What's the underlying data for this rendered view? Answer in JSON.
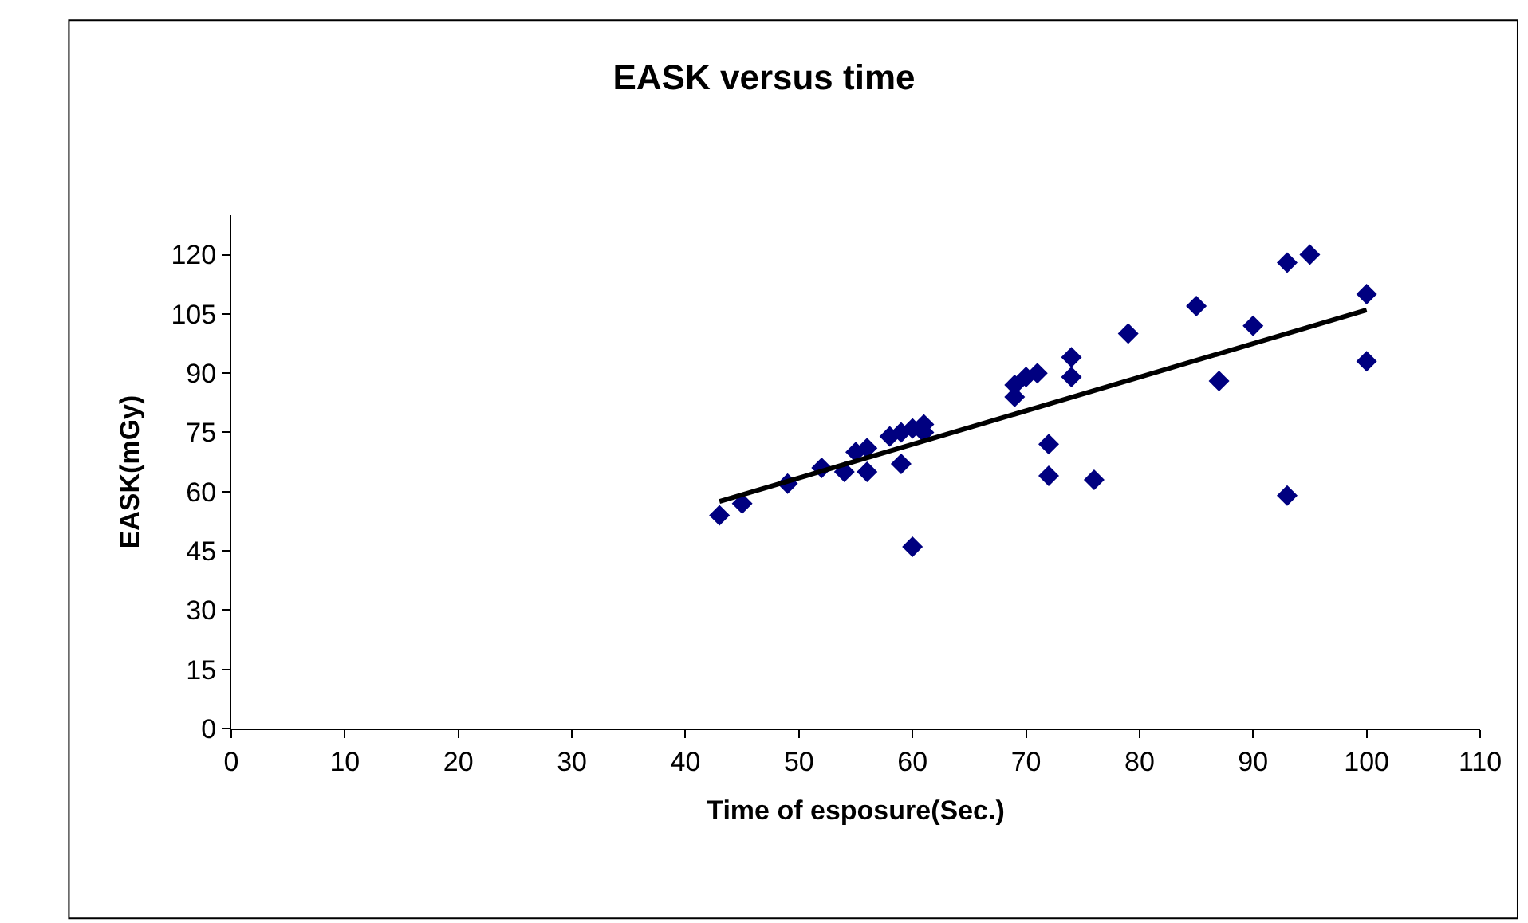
{
  "chart_data": {
    "type": "scatter",
    "title": "EASK versus time",
    "xlabel": "Time of esposure(Sec.)",
    "ylabel": "EASK(mGy)",
    "series": [
      {
        "color": "#000080",
        "marker": "diamond",
        "x": [
          43,
          45,
          49,
          52,
          54,
          55,
          56,
          56,
          58,
          59,
          59,
          60,
          60,
          61,
          61,
          69,
          69,
          70,
          71,
          72,
          72,
          74,
          74,
          76,
          79,
          85,
          87,
          90,
          93,
          93,
          95,
          100,
          100
        ],
        "values": [
          54,
          57,
          62,
          66,
          65,
          70,
          65,
          71,
          74,
          67,
          75,
          46,
          76,
          75,
          77,
          84,
          87,
          89,
          90,
          72,
          64,
          89,
          94,
          63,
          100,
          107,
          88,
          102,
          118,
          59,
          120,
          110,
          93
        ]
      },
      {
        "type": "line",
        "color": "#000000",
        "marker": "none",
        "line_style": "solid",
        "x": [
          43,
          100
        ],
        "values": [
          57.5,
          106
        ]
      }
    ],
    "xlim": [
      0,
      110
    ],
    "xticks": [
      0,
      10,
      20,
      30,
      40,
      50,
      60,
      70,
      80,
      90,
      100,
      110
    ],
    "ylim": [
      0,
      130
    ],
    "yticks": [
      0,
      15,
      30,
      45,
      60,
      75,
      90,
      105,
      120
    ],
    "grid": false
  }
}
